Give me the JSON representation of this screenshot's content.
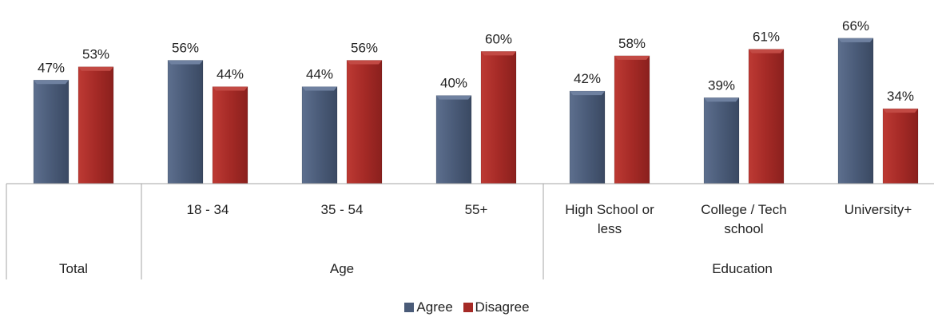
{
  "chart_data": {
    "type": "bar",
    "categories": [
      "",
      "18 - 34",
      "35 - 54",
      "55+",
      "High School or less",
      "College / Tech school",
      "University+"
    ],
    "category_lines": [
      [],
      [
        "18 - 34"
      ],
      [
        "35 - 54"
      ],
      [
        "55+"
      ],
      [
        "High School or",
        "less"
      ],
      [
        "College / Tech",
        "school"
      ],
      [
        "University+"
      ]
    ],
    "groups": [
      {
        "label": "Total",
        "categories": [
          0
        ]
      },
      {
        "label": "Age",
        "categories": [
          1,
          2,
          3
        ]
      },
      {
        "label": "Education",
        "categories": [
          4,
          5,
          6
        ]
      }
    ],
    "series": [
      {
        "name": "Agree",
        "values": [
          47,
          56,
          44,
          40,
          42,
          39,
          66
        ],
        "color": "#4a5b78"
      },
      {
        "name": "Disagree",
        "values": [
          53,
          44,
          56,
          60,
          58,
          61,
          34
        ],
        "color": "#a52a26"
      }
    ],
    "value_suffix": "%",
    "ylim": [
      0,
      70
    ],
    "grid": false,
    "legend_position": "bottom"
  }
}
